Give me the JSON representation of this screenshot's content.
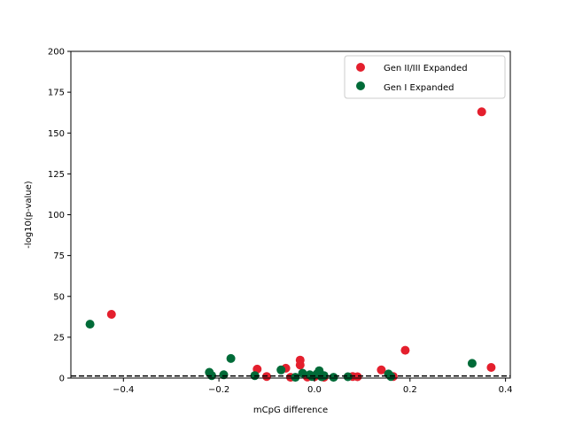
{
  "chart_data": {
    "type": "scatter",
    "xlabel": "mCpG difference",
    "ylabel": "-log10(p-value)",
    "xlim": [
      -0.51,
      0.41
    ],
    "ylim": [
      0,
      200
    ],
    "x_ticks": [
      -0.4,
      -0.2,
      0.0,
      0.2,
      0.4
    ],
    "x_tick_labels": [
      "−0.4",
      "−0.2",
      "0.0",
      "0.2",
      "0.4"
    ],
    "y_ticks": [
      0,
      25,
      50,
      75,
      100,
      125,
      150,
      175,
      200
    ],
    "y_tick_labels": [
      "0",
      "25",
      "50",
      "75",
      "100",
      "125",
      "150",
      "175",
      "200"
    ],
    "threshold_line": {
      "y": 1.3,
      "style": "dashed",
      "color": "#000000"
    },
    "grid": false,
    "legend_position": "top-right",
    "series": [
      {
        "name": "Gen II/III Expanded",
        "color": "#e41f2d",
        "points": [
          [
            -0.425,
            39
          ],
          [
            0.35,
            163
          ],
          [
            0.19,
            17
          ],
          [
            0.37,
            6.5
          ],
          [
            0.14,
            5
          ],
          [
            -0.12,
            5.5
          ],
          [
            -0.06,
            6
          ],
          [
            -0.03,
            11
          ],
          [
            -0.03,
            8
          ],
          [
            -0.1,
            1
          ],
          [
            -0.05,
            0.5
          ],
          [
            0.08,
            1
          ],
          [
            0.09,
            0.8
          ],
          [
            0.165,
            1
          ],
          [
            0.0,
            0.8
          ],
          [
            0.02,
            0.5
          ],
          [
            -0.015,
            0.6
          ]
        ]
      },
      {
        "name": "Gen I Expanded",
        "color": "#006b38",
        "points": [
          [
            -0.47,
            33
          ],
          [
            0.33,
            9
          ],
          [
            -0.175,
            12
          ],
          [
            -0.22,
            3.5
          ],
          [
            -0.215,
            1.5
          ],
          [
            -0.19,
            2
          ],
          [
            -0.125,
            1.5
          ],
          [
            -0.07,
            5
          ],
          [
            -0.025,
            3
          ],
          [
            -0.01,
            2
          ],
          [
            0.005,
            2.5
          ],
          [
            0.01,
            4.5
          ],
          [
            0.02,
            1.5
          ],
          [
            -0.04,
            0.5
          ],
          [
            0.04,
            0.5
          ],
          [
            0.07,
            0.8
          ],
          [
            0.155,
            2.5
          ],
          [
            0.16,
            1
          ],
          [
            -0.005,
            1
          ],
          [
            0.015,
            0.8
          ]
        ]
      }
    ]
  }
}
